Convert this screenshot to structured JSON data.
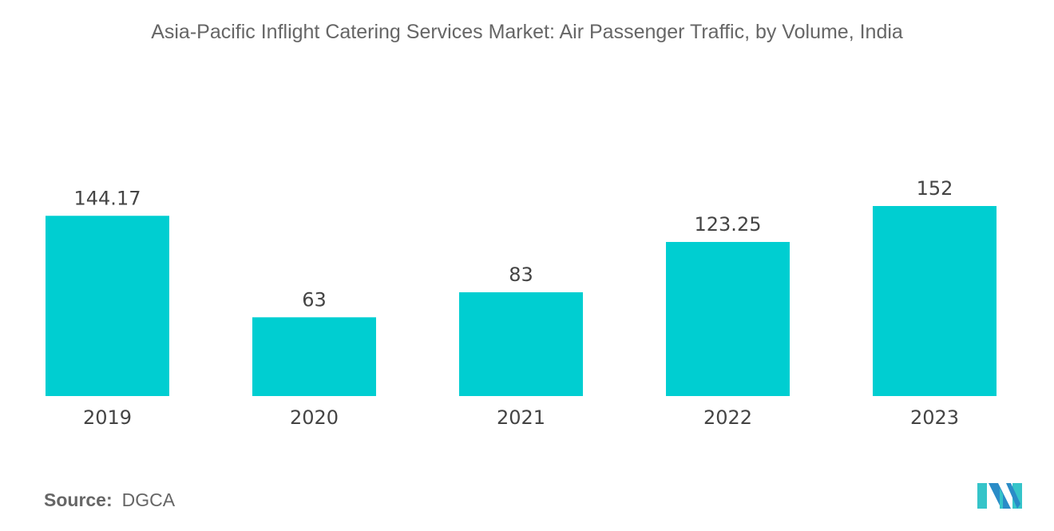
{
  "chart_data": {
    "type": "bar",
    "title": "Asia-Pacific Inflight Catering Services Market: Air Passenger Traffic, by Volume, India",
    "categories": [
      "2019",
      "2020",
      "2021",
      "2022",
      "2023"
    ],
    "values": [
      144.17,
      63,
      83,
      123.25,
      152
    ],
    "value_labels": [
      "144.17",
      "63",
      "83",
      "123.25",
      "152"
    ],
    "xlabel": "",
    "ylabel": "",
    "ylim": [
      0,
      152
    ],
    "grid": false,
    "bar_color": "#00CED1"
  },
  "source": {
    "label": "Source:",
    "value": "DGCA"
  },
  "logo": {
    "text": "MI",
    "colors": [
      "#2A8CC7",
      "#35C4C9"
    ]
  }
}
